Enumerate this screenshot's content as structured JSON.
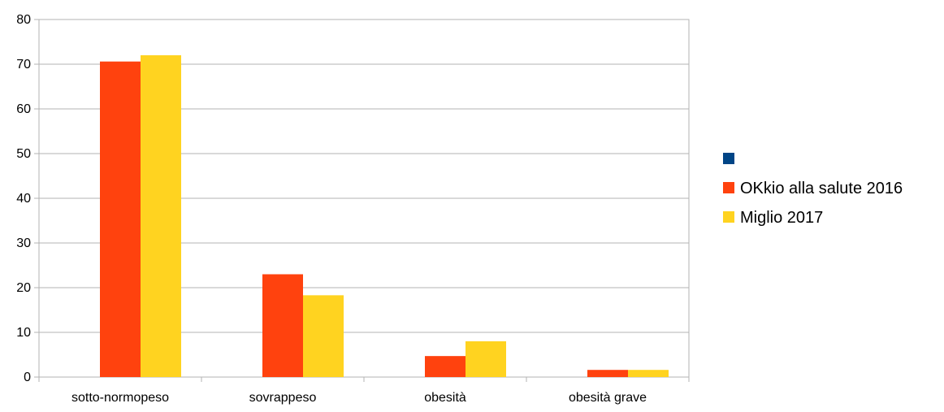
{
  "chart_data": {
    "type": "bar",
    "title": "",
    "xlabel": "",
    "ylabel": "",
    "categories": [
      "sotto-normopeso",
      "sovrappeso",
      "obesità",
      "obesità grave"
    ],
    "series": [
      {
        "name": "",
        "values": [
          0,
          0,
          0,
          0
        ],
        "color": "#004586"
      },
      {
        "name": "OKkio alla salute 2016",
        "values": [
          70.6,
          23.0,
          4.7,
          1.6
        ],
        "color": "#FF420E"
      },
      {
        "name": "Miglio 2017",
        "values": [
          72.0,
          18.3,
          8.0,
          1.6
        ],
        "color": "#FFD320"
      }
    ],
    "ylim": [
      0,
      80
    ],
    "yticks": [
      "0",
      "10",
      "20",
      "30",
      "40",
      "50",
      "60",
      "70",
      "80"
    ],
    "grid": true,
    "legend": "right"
  }
}
